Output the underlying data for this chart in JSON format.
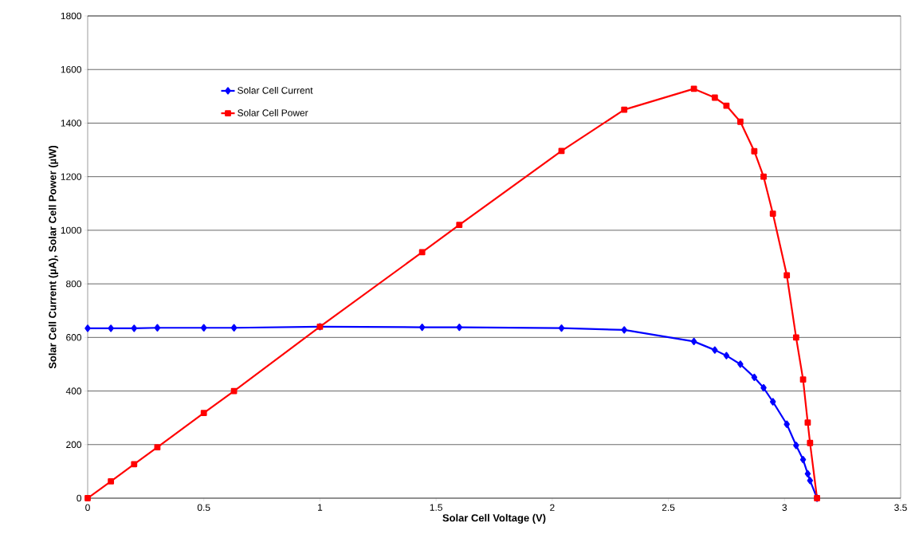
{
  "chart_data": {
    "type": "line",
    "xlabel": "Solar Cell Voltage (V)",
    "ylabel": "Solar Cell Current (µA), Solar Cell Power (µW)",
    "x": [
      0,
      0.1,
      0.2,
      0.3,
      0.5,
      0.63,
      1.0,
      1.44,
      1.6,
      2.04,
      2.31,
      2.61,
      2.7,
      2.75,
      2.81,
      2.87,
      2.91,
      2.95,
      3.01,
      3.05,
      3.08,
      3.1,
      3.11,
      3.14
    ],
    "series": [
      {
        "name": "Solar Cell Current",
        "color": "#0000ff",
        "marker": "diamond",
        "values": [
          634,
          634,
          634,
          636,
          636,
          636,
          640,
          638,
          638,
          635,
          628,
          585,
          553,
          532,
          500,
          451,
          412,
          360,
          276,
          197,
          144,
          91,
          66,
          0
        ]
      },
      {
        "name": "Solar Cell Power",
        "color": "#ff0000",
        "marker": "square",
        "values": [
          0,
          63,
          127,
          190,
          318,
          400,
          640,
          918,
          1020,
          1296,
          1450,
          1528,
          1495,
          1465,
          1405,
          1295,
          1200,
          1062,
          832,
          600,
          443,
          282,
          206,
          0
        ]
      }
    ],
    "xlim": [
      0,
      3.5
    ],
    "xticks": [
      0,
      0.5,
      1,
      1.5,
      2,
      2.5,
      3,
      3.5
    ],
    "ylim": [
      0,
      1800
    ],
    "yticks": [
      0,
      200,
      400,
      600,
      800,
      1000,
      1200,
      1400,
      1600,
      1800
    ],
    "grid": "y",
    "legend": "top left",
    "line_style": "solid"
  }
}
